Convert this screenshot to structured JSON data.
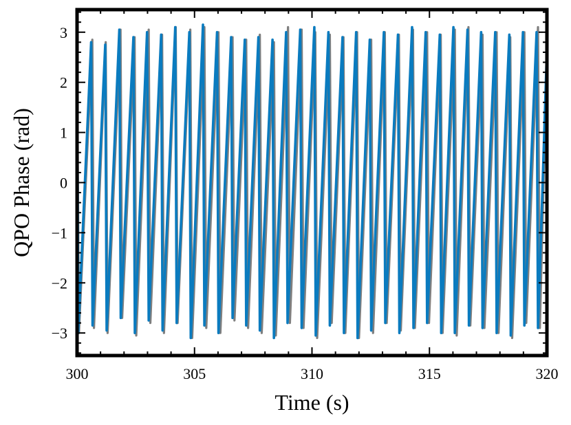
{
  "chart_data": {
    "type": "line",
    "title": "",
    "xlabel": "Time (s)",
    "ylabel": "QPO Phase (rad)",
    "xlim": [
      300,
      320
    ],
    "ylim": [
      -3.45,
      3.45
    ],
    "xticks": [
      300,
      305,
      310,
      315,
      320
    ],
    "xtick_labels": [
      "300",
      "305",
      "310",
      "315",
      "320"
    ],
    "yticks": [
      -3,
      -2,
      -1,
      0,
      1,
      2,
      3
    ],
    "ytick_labels": [
      "−3",
      "−2",
      "−1",
      "0",
      "1",
      "2",
      "3"
    ],
    "grid": false,
    "legend": "none",
    "colors": {
      "series_1": "#7f7f7f",
      "series_2": "#0a7bbf"
    },
    "series": [
      {
        "x": [
          300.0,
          300.08,
          300.65,
          300.72,
          301.22,
          301.3,
          301.85,
          301.92,
          302.45,
          302.52,
          303.05,
          303.12,
          303.62,
          303.7,
          304.2,
          304.28,
          304.82,
          304.9,
          305.42,
          305.5,
          306.02,
          306.1,
          306.62,
          306.7,
          307.2,
          307.28,
          307.78,
          307.86,
          308.38,
          308.46,
          308.98,
          309.06,
          309.56,
          309.64,
          310.14,
          310.22,
          310.76,
          310.84,
          311.34,
          311.42,
          311.92,
          312.0,
          312.52,
          312.6,
          313.1,
          313.18,
          313.7,
          313.78,
          314.3,
          314.38,
          314.9,
          314.98,
          315.48,
          315.56,
          316.08,
          316.16,
          316.66,
          316.74,
          317.26,
          317.34,
          317.86,
          317.94,
          318.44,
          318.52,
          319.04,
          319.12,
          319.62,
          319.7,
          320.0
        ],
        "y": [
          2.7,
          -3.0,
          2.85,
          -2.9,
          2.8,
          -3.0,
          3.05,
          -2.7,
          2.9,
          -3.05,
          3.05,
          -2.8,
          2.95,
          -3.0,
          3.1,
          -2.8,
          3.05,
          -3.1,
          3.1,
          -2.9,
          3.0,
          -3.0,
          2.9,
          -2.75,
          2.85,
          -2.9,
          2.95,
          -3.0,
          2.8,
          -3.05,
          3.1,
          -2.8,
          3.05,
          -2.9,
          3.0,
          -3.1,
          2.95,
          -2.8,
          2.9,
          -3.0,
          3.0,
          -3.1,
          2.85,
          -3.0,
          3.0,
          -2.8,
          2.95,
          -2.95,
          3.05,
          -2.9,
          3.0,
          -2.8,
          2.95,
          -3.0,
          3.05,
          -3.05,
          3.1,
          -2.85,
          2.95,
          -2.9,
          3.0,
          -3.0,
          2.9,
          -3.1,
          3.0,
          -2.8,
          3.1,
          -2.9,
          2.7
        ]
      },
      {
        "x": [
          300.0,
          300.05,
          300.6,
          300.66,
          301.2,
          301.26,
          301.8,
          301.86,
          302.4,
          302.46,
          302.98,
          303.05,
          303.58,
          303.64,
          304.18,
          304.24,
          304.78,
          304.84,
          305.36,
          305.42,
          305.96,
          306.02,
          306.56,
          306.62,
          307.14,
          307.2,
          307.72,
          307.78,
          308.32,
          308.38,
          308.9,
          308.96,
          309.5,
          309.56,
          310.1,
          310.16,
          310.7,
          310.76,
          311.3,
          311.36,
          311.88,
          311.94,
          312.46,
          312.52,
          313.06,
          313.12,
          313.66,
          313.72,
          314.26,
          314.32,
          314.84,
          314.9,
          315.44,
          315.5,
          316.02,
          316.08,
          316.62,
          316.68,
          317.2,
          317.26,
          317.8,
          317.86,
          318.4,
          318.46,
          318.98,
          319.04,
          319.56,
          319.62,
          320.0
        ],
        "y": [
          2.7,
          -3.0,
          2.8,
          -2.85,
          2.75,
          -2.95,
          3.05,
          -2.7,
          2.9,
          -3.0,
          3.0,
          -2.75,
          2.95,
          -2.95,
          3.1,
          -2.8,
          3.0,
          -3.1,
          3.15,
          -2.85,
          3.0,
          -3.0,
          2.9,
          -2.7,
          2.85,
          -2.85,
          2.9,
          -2.95,
          2.85,
          -3.1,
          3.0,
          -2.8,
          3.05,
          -2.9,
          3.1,
          -3.05,
          3.0,
          -2.85,
          2.9,
          -3.0,
          3.0,
          -3.1,
          2.85,
          -2.95,
          3.0,
          -2.8,
          2.95,
          -3.0,
          3.1,
          -2.9,
          3.0,
          -2.8,
          2.95,
          -3.0,
          3.1,
          -3.0,
          3.05,
          -2.85,
          3.0,
          -2.9,
          3.0,
          -3.0,
          2.95,
          -3.05,
          3.0,
          -2.85,
          3.0,
          -2.9,
          2.65
        ]
      }
    ]
  }
}
